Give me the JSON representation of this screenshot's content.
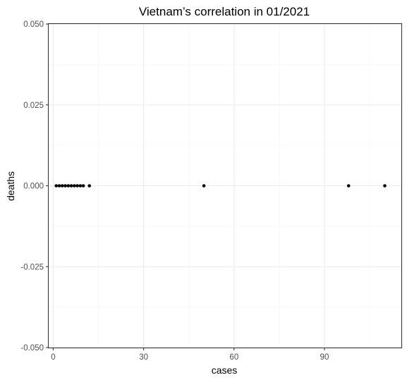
{
  "chart_data": {
    "type": "scatter",
    "title": "Vietnam’s correlation in 01/2021",
    "xlabel": "cases",
    "ylabel": "deaths",
    "xlim": [
      -1.5,
      115.5
    ],
    "ylim": [
      -0.05,
      0.05
    ],
    "x_ticks": [
      0,
      30,
      60,
      90
    ],
    "x_tick_labels": [
      "0",
      "30",
      "60",
      "90"
    ],
    "y_ticks": [
      0.05,
      0.025,
      0.0,
      -0.025,
      -0.05
    ],
    "y_tick_labels": [
      "0.050",
      "0.025",
      "0.000",
      "-0.025",
      "-0.050"
    ],
    "grid": true,
    "legend": "none",
    "point_color": "#000000",
    "points": [
      {
        "x": 1,
        "y": 0
      },
      {
        "x": 2,
        "y": 0
      },
      {
        "x": 3,
        "y": 0
      },
      {
        "x": 4,
        "y": 0
      },
      {
        "x": 5,
        "y": 0
      },
      {
        "x": 6,
        "y": 0
      },
      {
        "x": 7,
        "y": 0
      },
      {
        "x": 8,
        "y": 0
      },
      {
        "x": 9,
        "y": 0
      },
      {
        "x": 10,
        "y": 0
      },
      {
        "x": 12,
        "y": 0
      },
      {
        "x": 50,
        "y": 0
      },
      {
        "x": 98,
        "y": 0
      },
      {
        "x": 110,
        "y": 0
      }
    ]
  }
}
